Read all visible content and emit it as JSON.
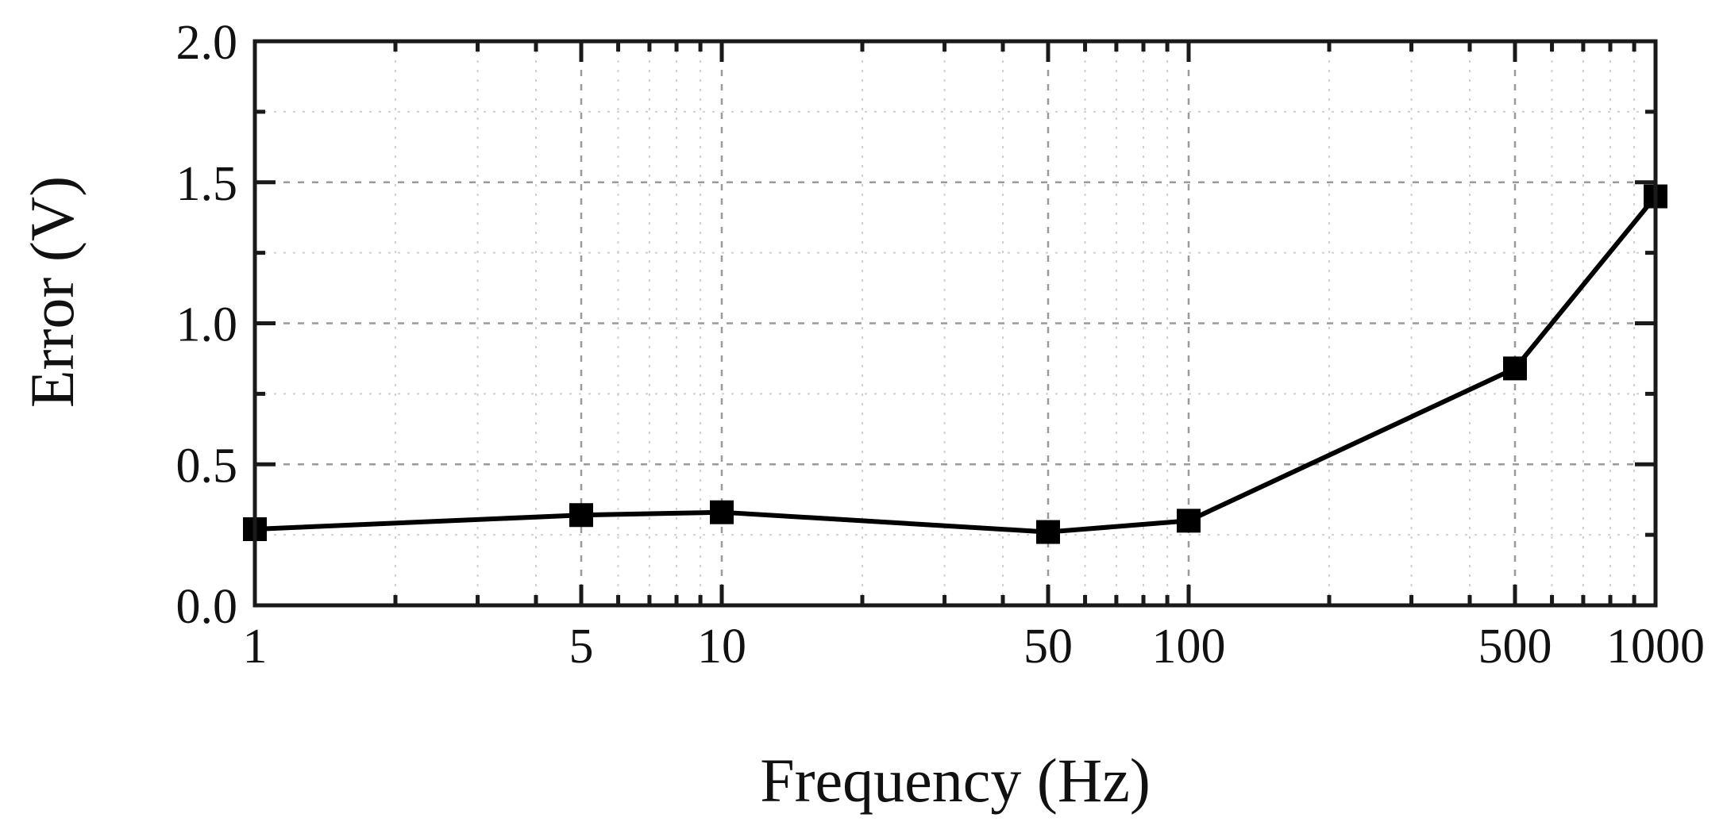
{
  "chart_data": {
    "type": "line",
    "title": "",
    "xlabel": "Frequency (Hz)",
    "ylabel": "Error (V)",
    "xscale": "log",
    "xlim": [
      1,
      1000
    ],
    "ylim": [
      0.0,
      2.0
    ],
    "x_ticks": [
      1,
      5,
      10,
      50,
      100,
      500,
      1000
    ],
    "x_tick_labels": [
      "1",
      "5",
      "10",
      "50",
      "100",
      "500",
      "1000"
    ],
    "y_ticks": [
      0.0,
      0.5,
      1.0,
      1.5,
      2.0
    ],
    "y_tick_labels": [
      "0.0",
      "0.5",
      "1.0",
      "1.5",
      "2.0"
    ],
    "y_minor_step": 0.25,
    "grid": true,
    "legend": null,
    "series": [
      {
        "name": "Error",
        "marker": "square",
        "color": "#000000",
        "x": [
          1,
          5,
          10,
          50,
          100,
          500,
          1000
        ],
        "values": [
          0.27,
          0.32,
          0.33,
          0.26,
          0.3,
          0.84,
          1.45
        ]
      }
    ]
  },
  "colors": {
    "axis": "#1a1a1a",
    "grid_major": "#9a9a9a",
    "grid_minor": "#cfcfcf",
    "line": "#000000",
    "background": "#ffffff"
  }
}
